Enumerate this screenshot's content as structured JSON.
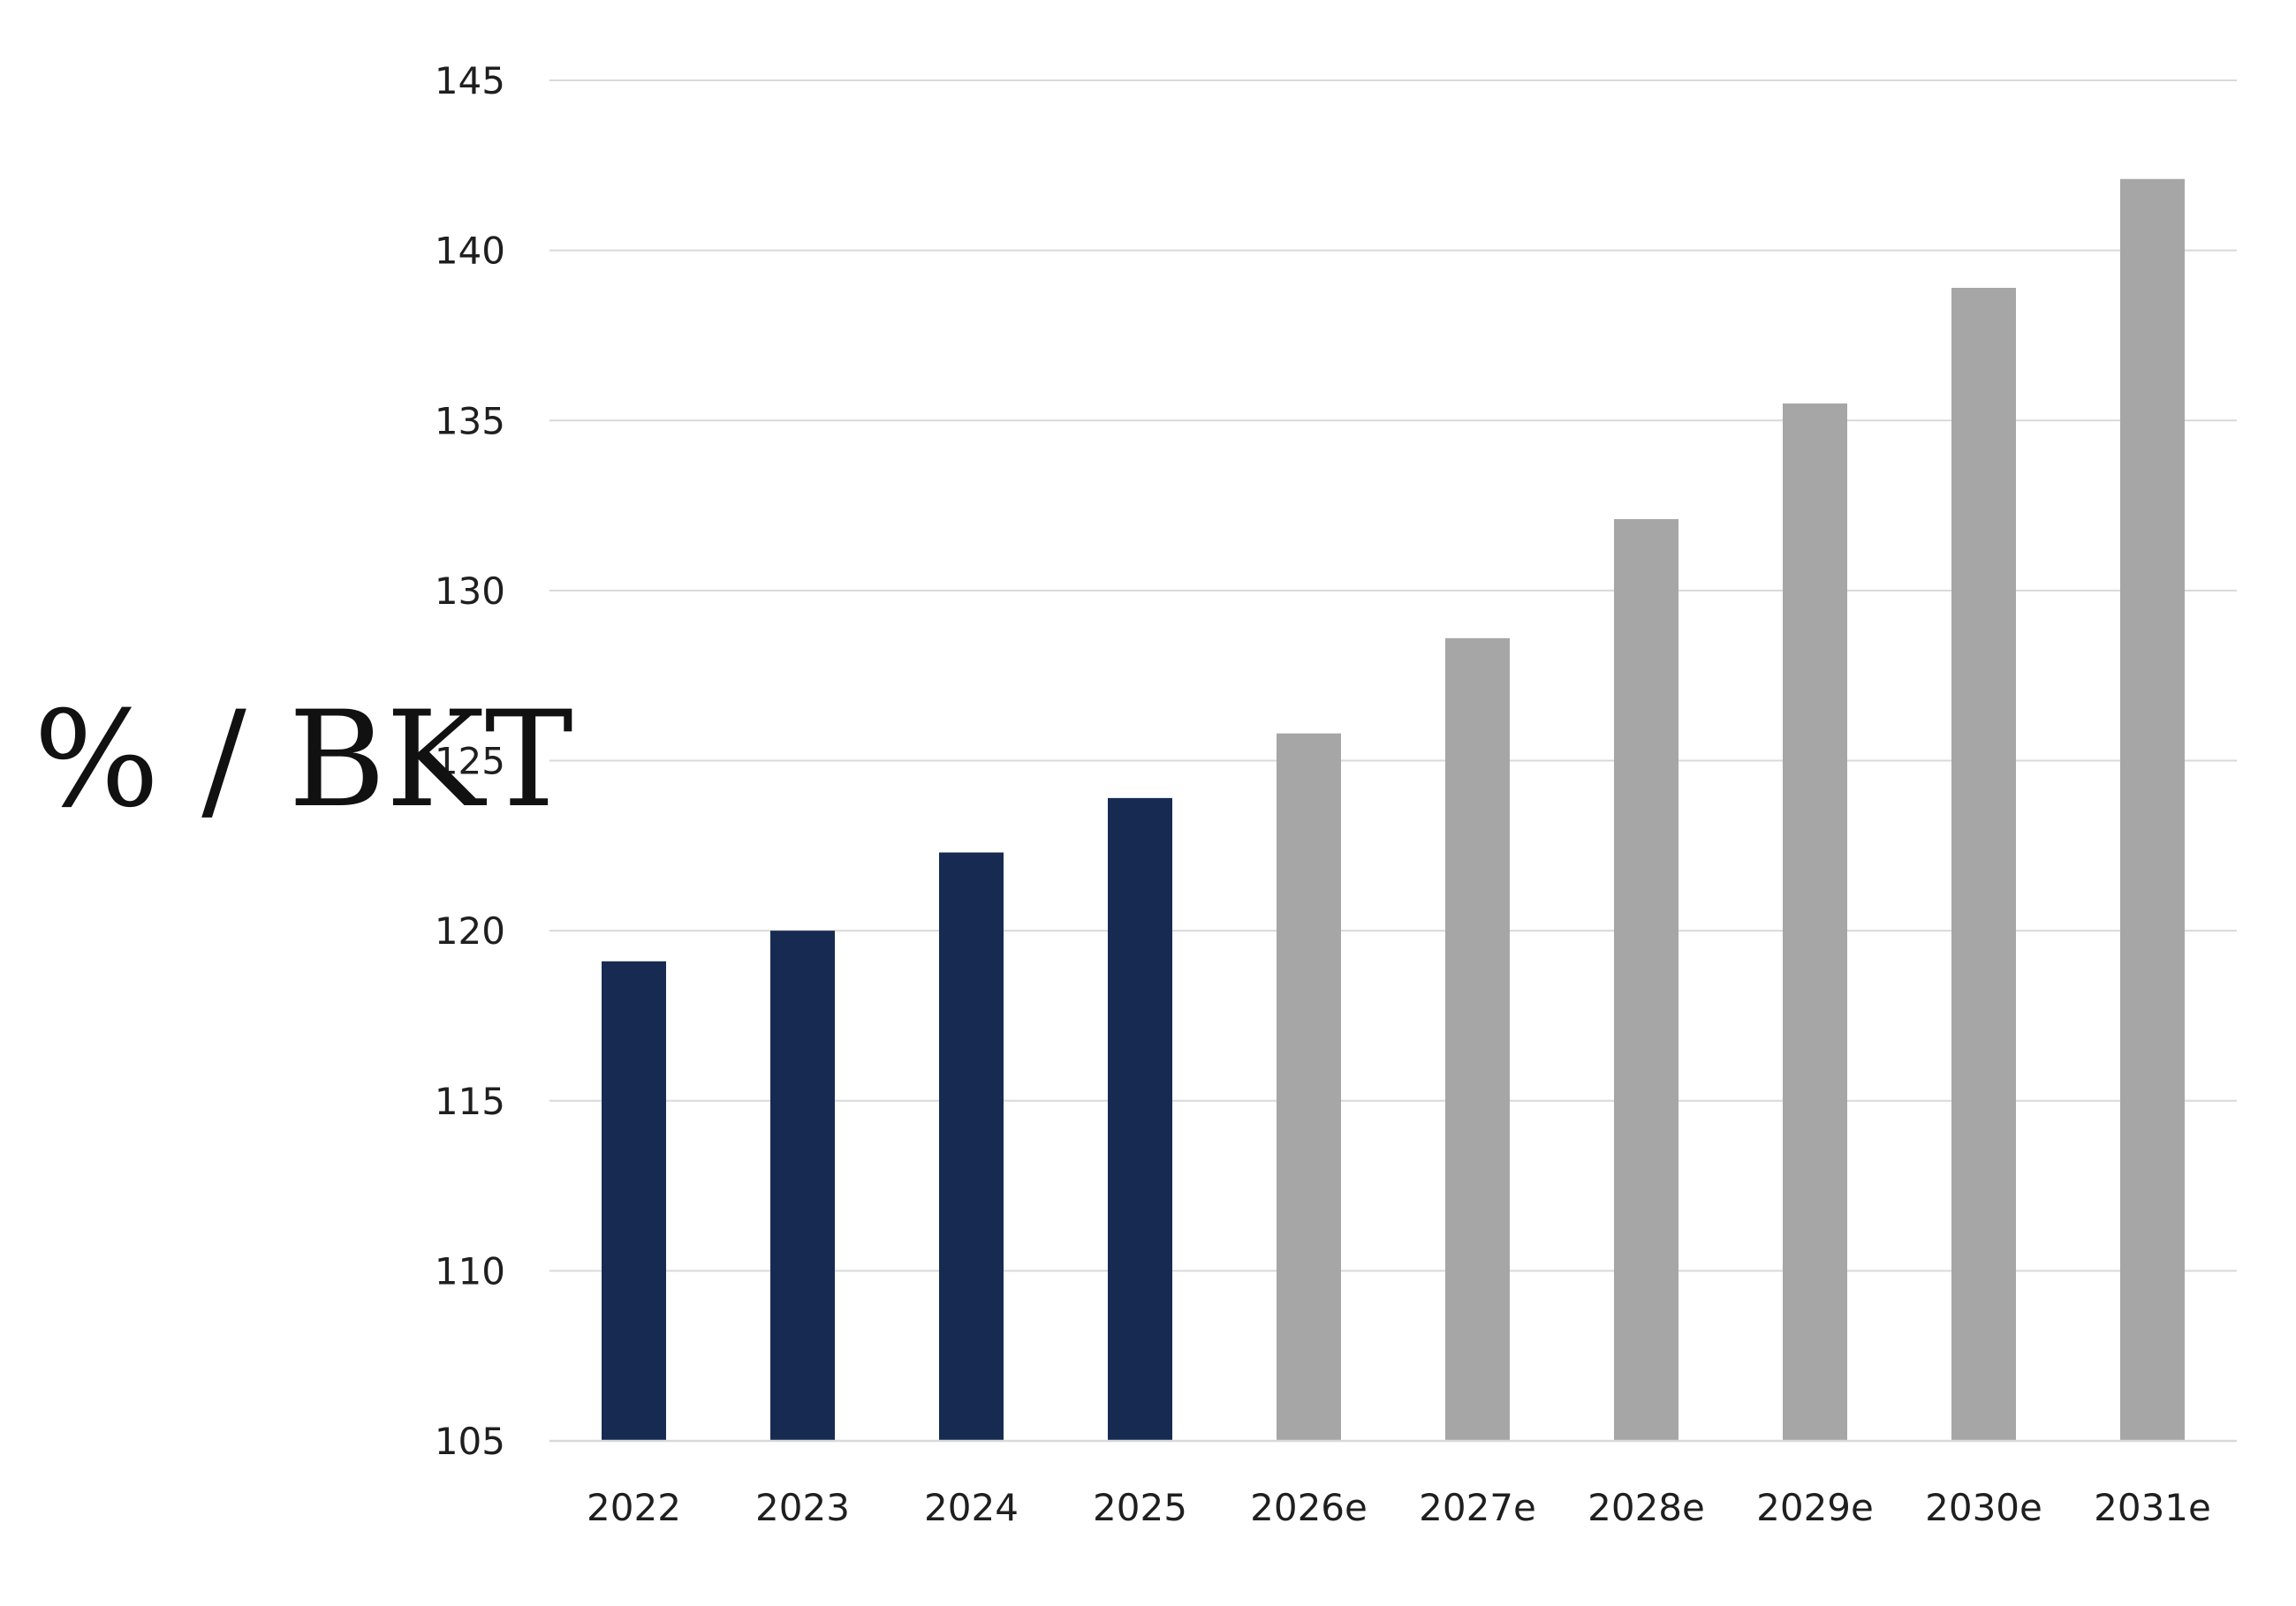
{
  "chart_data": {
    "type": "bar",
    "title": "",
    "xlabel": "",
    "ylabel": "% / BKT",
    "categories": [
      "2022",
      "2023",
      "2024",
      "2025",
      "2026e",
      "2027e",
      "2028e",
      "2029e",
      "2030e",
      "2031e"
    ],
    "series": [
      {
        "values": [
          119.1,
          120.0,
          122.3,
          123.9,
          125.8,
          128.6,
          132.1,
          135.5,
          138.9,
          142.1
        ]
      }
    ],
    "bar_colors": [
      "#172b52",
      "#172b52",
      "#172b52",
      "#172b52",
      "#a6a6a6",
      "#a6a6a6",
      "#a6a6a6",
      "#a6a6a6",
      "#a6a6a6",
      "#a6a6a6"
    ],
    "ylim": [
      105,
      145
    ],
    "yticks": [
      105,
      110,
      115,
      120,
      125,
      130,
      135,
      140,
      145
    ],
    "grid": true,
    "legend": "none"
  }
}
